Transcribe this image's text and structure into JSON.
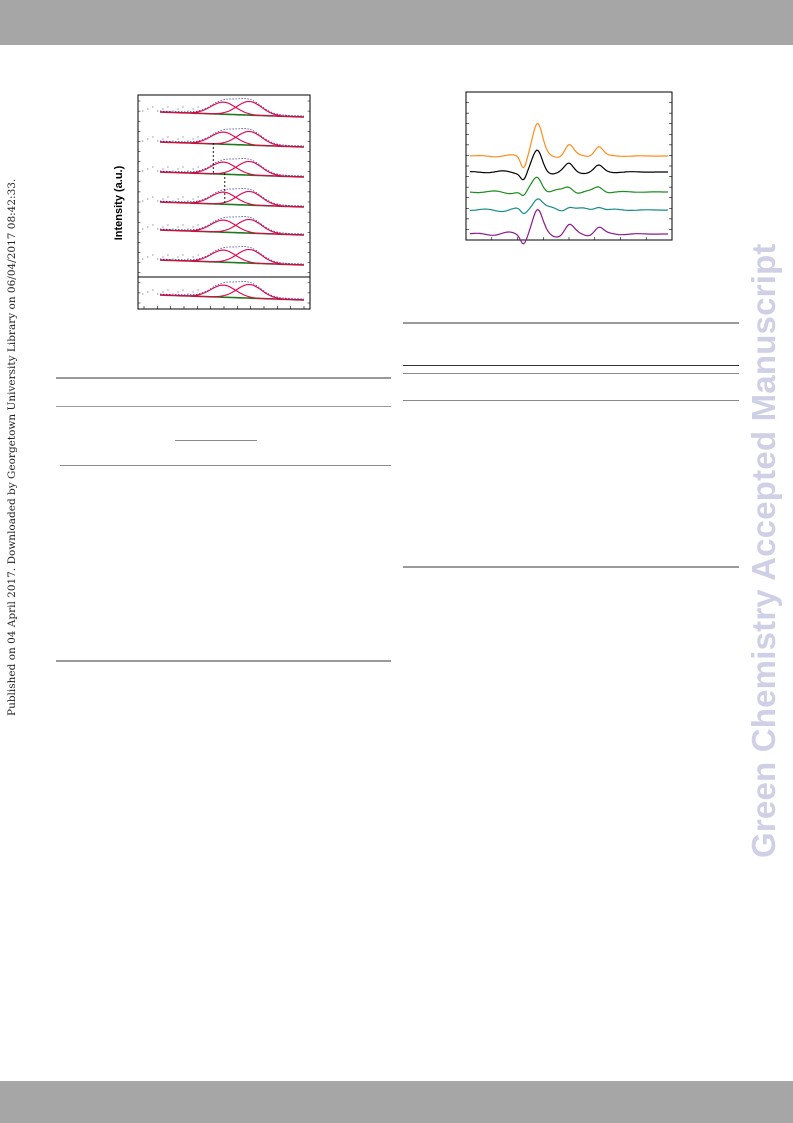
{
  "header_bar": "",
  "footer_bar": "",
  "side_note": "Published on 04 April 2017. Downloaded by Georgetown University Library on 06/04/2017 08:42:33.",
  "watermark": "Green Chemistry Accepted Manuscript",
  "colors": {
    "bar_gray": "#a6a6a6",
    "watermark": "#cfcfe6",
    "fit_red": "#e8004a",
    "envelope_blue": "#2f2f9a",
    "background_green": "#1f7a1f",
    "raw_gray": "#b8b8c8"
  },
  "figure_left": {
    "ylabel": "Intensity (a.u.)",
    "series_count": 7,
    "peaks": [
      {
        "center": 0.44,
        "width": 0.085,
        "height": 0.55
      },
      {
        "center": 0.62,
        "width": 0.085,
        "height": 0.62
      }
    ],
    "markers": [
      {
        "panel": 2,
        "x": 0.37
      },
      {
        "panel": 3,
        "x": 0.45
      }
    ]
  },
  "figure_right": {
    "series": [
      {
        "color": "#ff8c1a"
      },
      {
        "color": "#000000"
      },
      {
        "color": "#1e8c1e"
      },
      {
        "color": "#1a8a8a"
      },
      {
        "color": "#8b1a8b"
      }
    ]
  }
}
